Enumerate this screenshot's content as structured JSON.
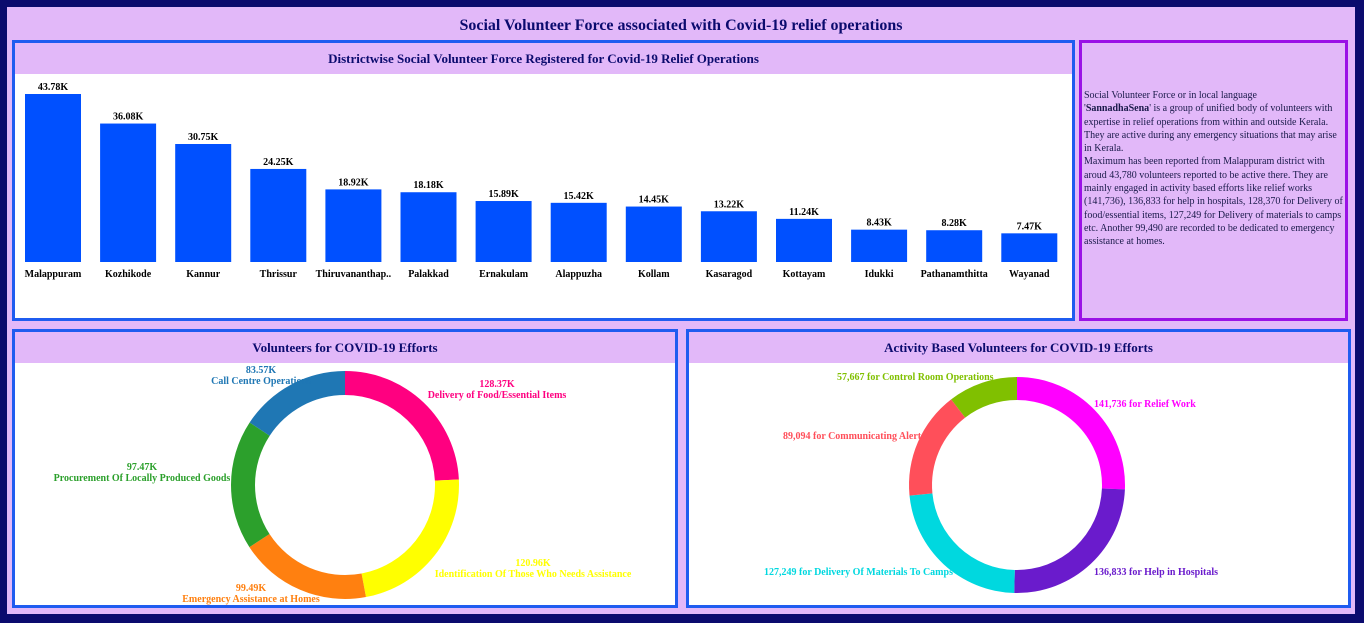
{
  "page": {
    "title": "Social Volunteer Force associated with Covid-19 relief operations"
  },
  "bar_panel": {
    "title": "Districtwise Social Volunteer Force Registered for Covid-19 Relief Operations"
  },
  "info_panel": {
    "line1": "Social Volunteer Force or in local language",
    "line2_prefix": "'",
    "line2_bold": "SannadhaSena",
    "line2_suffix": "' is a group of  unified body of volunteers with expertise in relief operations from within and outside Kerala. They are active during any emergency situations that may arise in Kerala.",
    "line3": "Maximum has been reported from Malappuram district with aroud 43,780 volunteers reported to be active there. They are mainly engaged in activity based efforts like relief works (141,736), 136,833 for help in hospitals, 128,370 for Delivery of food/essential items, 127,249 for Delivery of materials to camps etc. Another 99,490 are recorded to be dedicated to emergency assistance at homes."
  },
  "donut1_panel": {
    "title": "Volunteers for COVID-19 Efforts"
  },
  "donut2_panel": {
    "title": "Activity Based Volunteers for COVID-19 Efforts"
  },
  "chart_data": [
    {
      "type": "bar",
      "title": "Districtwise Social Volunteer Force Registered for Covid-19 Relief Operations",
      "categories": [
        "Malappuram",
        "Kozhikode",
        "Kannur",
        "Thrissur",
        "Thiruvananthap..",
        "Palakkad",
        "Ernakulam",
        "Alappuzha",
        "Kollam",
        "Kasaragod",
        "Kottayam",
        "Idukki",
        "Pathanamthitta",
        "Wayanad"
      ],
      "values": [
        43.78,
        36.08,
        30.75,
        24.25,
        18.92,
        18.18,
        15.89,
        15.42,
        14.45,
        13.22,
        11.24,
        8.43,
        8.28,
        7.47
      ],
      "labels": [
        "43.78K",
        "36.08K",
        "30.75K",
        "24.25K",
        "18.92K",
        "18.18K",
        "15.89K",
        "15.42K",
        "14.45K",
        "13.22K",
        "11.24K",
        "8.43K",
        "8.28K",
        "7.47K"
      ],
      "color": "#0050ff",
      "ylim": [
        0,
        45
      ]
    },
    {
      "type": "pie",
      "title": "Volunteers for COVID-19 Efforts",
      "slices": [
        {
          "name": "Delivery of Food/Essential Items",
          "value": 128.37,
          "label": "128.37K",
          "color": "#ff0080"
        },
        {
          "name": "Identification Of Those Who Needs Assistance",
          "value": 120.96,
          "label": "120.96K",
          "color": "#ffff00"
        },
        {
          "name": "Emergency Assistance at Homes",
          "value": 99.49,
          "label": "99.49K",
          "color": "#ff8010"
        },
        {
          "name": "Procurement Of Locally Produced Goods",
          "value": 97.47,
          "label": "97.47K",
          "color": "#2ca02c"
        },
        {
          "name": "Call Centre Operations",
          "value": 83.57,
          "label": "83.57K",
          "color": "#1f77b4"
        }
      ]
    },
    {
      "type": "pie",
      "title": "Activity Based Volunteers for COVID-19 Efforts",
      "slices": [
        {
          "name": "141,736 for Relief Work",
          "value": 141736,
          "color": "#ff00ff"
        },
        {
          "name": "136,833 for Help in Hospitals",
          "value": 136833,
          "color": "#6a1bcc"
        },
        {
          "name": "127,249 for Delivery Of Materials To Camps",
          "value": 127249,
          "color": "#00d8df"
        },
        {
          "name": "89,094 for Communicating Alerts",
          "value": 89094,
          "color": "#ff4f5a"
        },
        {
          "name": "57,667 for Control Room Operations",
          "value": 57667,
          "color": "#80c000"
        }
      ]
    }
  ]
}
